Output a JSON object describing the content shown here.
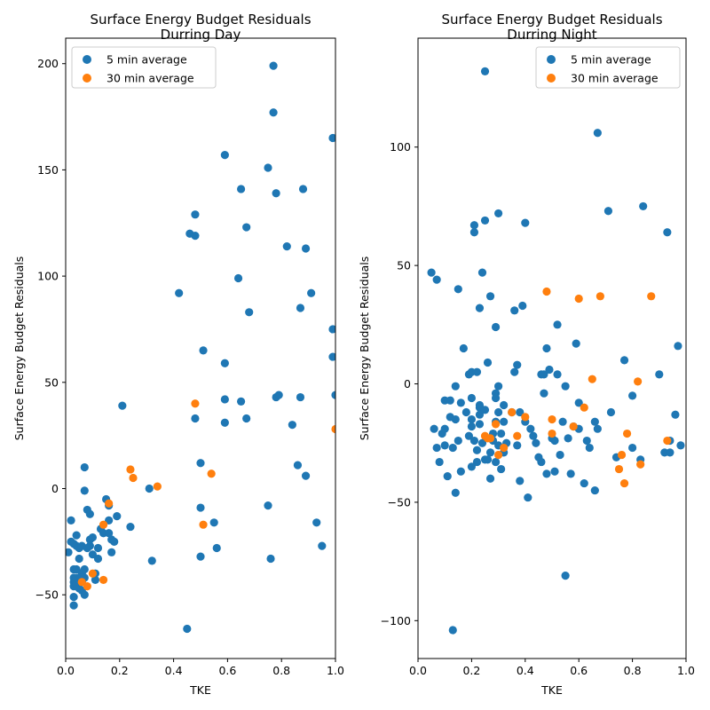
{
  "chart_data": [
    {
      "type": "scatter",
      "title": "Surface Energy Budget Residuals\nDurring Day",
      "xlabel": "TKE",
      "ylabel": "Surface Energy Budget Residuals",
      "xlim": [
        0.0,
        1.0
      ],
      "ylim": [
        -80,
        212
      ],
      "xticks": [
        0.0,
        0.2,
        0.4,
        0.6,
        0.8,
        1.0
      ],
      "xtick_labels": [
        "0.0",
        "0.2",
        "0.4",
        "0.6",
        "0.8",
        "1.0"
      ],
      "yticks": [
        -50,
        0,
        50,
        100,
        150,
        200
      ],
      "ytick_labels": [
        "−50",
        "0",
        "50",
        "100",
        "150",
        "200"
      ],
      "legend_position": "top-left",
      "grid": false,
      "series": [
        {
          "name": "5 min average",
          "color": "#1f77b4",
          "points": [
            [
              0.01,
              -30
            ],
            [
              0.02,
              -25
            ],
            [
              0.02,
              -15
            ],
            [
              0.03,
              -26
            ],
            [
              0.03,
              -38
            ],
            [
              0.03,
              -42
            ],
            [
              0.03,
              -44
            ],
            [
              0.03,
              -46
            ],
            [
              0.03,
              -51
            ],
            [
              0.03,
              -55
            ],
            [
              0.04,
              -22
            ],
            [
              0.04,
              -27
            ],
            [
              0.04,
              -38
            ],
            [
              0.04,
              -42
            ],
            [
              0.04,
              -45
            ],
            [
              0.05,
              -28
            ],
            [
              0.05,
              -33
            ],
            [
              0.05,
              -43
            ],
            [
              0.05,
              -47
            ],
            [
              0.06,
              -27
            ],
            [
              0.06,
              -40
            ],
            [
              0.06,
              -44
            ],
            [
              0.06,
              -48
            ],
            [
              0.07,
              -50
            ],
            [
              0.07,
              10
            ],
            [
              0.07,
              -1
            ],
            [
              0.07,
              -38
            ],
            [
              0.07,
              -42
            ],
            [
              0.08,
              -28
            ],
            [
              0.08,
              -10
            ],
            [
              0.09,
              -12
            ],
            [
              0.09,
              -24
            ],
            [
              0.09,
              -27
            ],
            [
              0.1,
              -23
            ],
            [
              0.1,
              -31
            ],
            [
              0.11,
              -40
            ],
            [
              0.11,
              -43
            ],
            [
              0.12,
              -28
            ],
            [
              0.12,
              -33
            ],
            [
              0.13,
              -19
            ],
            [
              0.14,
              -21
            ],
            [
              0.15,
              -5
            ],
            [
              0.16,
              -8
            ],
            [
              0.16,
              -15
            ],
            [
              0.16,
              -21
            ],
            [
              0.17,
              -24
            ],
            [
              0.17,
              -30
            ],
            [
              0.18,
              -25
            ],
            [
              0.19,
              -13
            ],
            [
              0.21,
              39
            ],
            [
              0.24,
              -18
            ],
            [
              0.31,
              0
            ],
            [
              0.32,
              -34
            ],
            [
              0.42,
              92
            ],
            [
              0.45,
              -66
            ],
            [
              0.46,
              120
            ],
            [
              0.48,
              129
            ],
            [
              0.48,
              119
            ],
            [
              0.48,
              33
            ],
            [
              0.5,
              12
            ],
            [
              0.5,
              -9
            ],
            [
              0.5,
              -32
            ],
            [
              0.51,
              65
            ],
            [
              0.55,
              -16
            ],
            [
              0.56,
              -28
            ],
            [
              0.59,
              157
            ],
            [
              0.59,
              59
            ],
            [
              0.59,
              42
            ],
            [
              0.59,
              31
            ],
            [
              0.64,
              99
            ],
            [
              0.65,
              141
            ],
            [
              0.65,
              41
            ],
            [
              0.67,
              123
            ],
            [
              0.67,
              33
            ],
            [
              0.68,
              83
            ],
            [
              0.75,
              151
            ],
            [
              0.75,
              -8
            ],
            [
              0.76,
              -33
            ],
            [
              0.77,
              199
            ],
            [
              0.77,
              177
            ],
            [
              0.78,
              139
            ],
            [
              0.78,
              43
            ],
            [
              0.79,
              44
            ],
            [
              0.82,
              114
            ],
            [
              0.84,
              30
            ],
            [
              0.86,
              11
            ],
            [
              0.87,
              85
            ],
            [
              0.87,
              43
            ],
            [
              0.88,
              141
            ],
            [
              0.89,
              113
            ],
            [
              0.89,
              6
            ],
            [
              0.91,
              92
            ],
            [
              0.93,
              -16
            ],
            [
              0.95,
              -27
            ],
            [
              0.99,
              165
            ],
            [
              0.99,
              75
            ],
            [
              0.99,
              62
            ],
            [
              1.0,
              44
            ]
          ]
        },
        {
          "name": "30 min average",
          "color": "#ff7f0e",
          "points": [
            [
              0.06,
              -44
            ],
            [
              0.08,
              -46
            ],
            [
              0.1,
              -40
            ],
            [
              0.14,
              -17
            ],
            [
              0.14,
              -43
            ],
            [
              0.16,
              -7
            ],
            [
              0.24,
              9
            ],
            [
              0.25,
              5
            ],
            [
              0.34,
              1
            ],
            [
              0.48,
              40
            ],
            [
              0.51,
              -17
            ],
            [
              0.54,
              7
            ],
            [
              1.0,
              28
            ]
          ]
        }
      ]
    },
    {
      "type": "scatter",
      "title": "Surface Energy Budget Residuals\nDurring Night",
      "xlabel": "TKE",
      "ylabel": "Surface Energy Budget Residuals",
      "xlim": [
        0.0,
        1.0
      ],
      "ylim": [
        -116,
        146
      ],
      "xticks": [
        0.0,
        0.2,
        0.4,
        0.6,
        0.8,
        1.0
      ],
      "xtick_labels": [
        "0.0",
        "0.2",
        "0.4",
        "0.6",
        "0.8",
        "1.0"
      ],
      "yticks": [
        -100,
        -50,
        0,
        50,
        100
      ],
      "ytick_labels": [
        "−100",
        "−50",
        "0",
        "50",
        "100"
      ],
      "legend_position": "top-right",
      "grid": false,
      "series": [
        {
          "name": "5 min average",
          "color": "#1f77b4",
          "points": [
            [
              0.05,
              47
            ],
            [
              0.06,
              -19
            ],
            [
              0.07,
              44
            ],
            [
              0.07,
              -27
            ],
            [
              0.08,
              -33
            ],
            [
              0.09,
              -21
            ],
            [
              0.1,
              -7
            ],
            [
              0.1,
              -19
            ],
            [
              0.1,
              -26
            ],
            [
              0.11,
              -39
            ],
            [
              0.12,
              -14
            ],
            [
              0.12,
              -7
            ],
            [
              0.13,
              -27
            ],
            [
              0.13,
              -104
            ],
            [
              0.14,
              -1
            ],
            [
              0.14,
              -15
            ],
            [
              0.14,
              -46
            ],
            [
              0.15,
              40
            ],
            [
              0.15,
              -24
            ],
            [
              0.16,
              -37
            ],
            [
              0.16,
              -8
            ],
            [
              0.17,
              15
            ],
            [
              0.18,
              -12
            ],
            [
              0.19,
              -22
            ],
            [
              0.19,
              4
            ],
            [
              0.2,
              5
            ],
            [
              0.2,
              -6
            ],
            [
              0.2,
              -15
            ],
            [
              0.2,
              -18
            ],
            [
              0.2,
              -35
            ],
            [
              0.21,
              67
            ],
            [
              0.21,
              64
            ],
            [
              0.21,
              -24
            ],
            [
              0.22,
              -28
            ],
            [
              0.22,
              -33
            ],
            [
              0.22,
              5
            ],
            [
              0.23,
              32
            ],
            [
              0.23,
              -9
            ],
            [
              0.23,
              -10
            ],
            [
              0.23,
              -13
            ],
            [
              0.23,
              -17
            ],
            [
              0.24,
              47
            ],
            [
              0.24,
              -25
            ],
            [
              0.25,
              -11
            ],
            [
              0.25,
              -32
            ],
            [
              0.25,
              69
            ],
            [
              0.25,
              132
            ],
            [
              0.26,
              9
            ],
            [
              0.26,
              -32
            ],
            [
              0.27,
              37
            ],
            [
              0.27,
              -29
            ],
            [
              0.27,
              -40
            ],
            [
              0.28,
              -21
            ],
            [
              0.28,
              -24
            ],
            [
              0.29,
              24
            ],
            [
              0.29,
              -4
            ],
            [
              0.29,
              -6
            ],
            [
              0.29,
              -16
            ],
            [
              0.29,
              -33
            ],
            [
              0.3,
              -1
            ],
            [
              0.3,
              -12
            ],
            [
              0.3,
              72
            ],
            [
              0.3,
              -26
            ],
            [
              0.31,
              -21
            ],
            [
              0.31,
              -36
            ],
            [
              0.32,
              -9
            ],
            [
              0.32,
              -16
            ],
            [
              0.32,
              -29
            ],
            [
              0.33,
              -25
            ],
            [
              0.35,
              -12
            ],
            [
              0.36,
              5
            ],
            [
              0.36,
              31
            ],
            [
              0.37,
              8
            ],
            [
              0.37,
              -26
            ],
            [
              0.38,
              -41
            ],
            [
              0.38,
              -12
            ],
            [
              0.39,
              33
            ],
            [
              0.4,
              68
            ],
            [
              0.4,
              -16
            ],
            [
              0.41,
              -48
            ],
            [
              0.42,
              -19
            ],
            [
              0.43,
              -22
            ],
            [
              0.44,
              -25
            ],
            [
              0.45,
              -31
            ],
            [
              0.46,
              -33
            ],
            [
              0.46,
              4
            ],
            [
              0.47,
              4
            ],
            [
              0.47,
              -4
            ],
            [
              0.48,
              15
            ],
            [
              0.48,
              -38
            ],
            [
              0.49,
              6
            ],
            [
              0.5,
              -23
            ],
            [
              0.51,
              -37
            ],
            [
              0.51,
              -24
            ],
            [
              0.52,
              4
            ],
            [
              0.52,
              25
            ],
            [
              0.53,
              -30
            ],
            [
              0.54,
              -16
            ],
            [
              0.55,
              -81
            ],
            [
              0.55,
              -1
            ],
            [
              0.56,
              -23
            ],
            [
              0.57,
              -38
            ],
            [
              0.58,
              -18
            ],
            [
              0.59,
              17
            ],
            [
              0.6,
              -8
            ],
            [
              0.6,
              -19
            ],
            [
              0.62,
              -42
            ],
            [
              0.63,
              -24
            ],
            [
              0.64,
              -27
            ],
            [
              0.66,
              -45
            ],
            [
              0.66,
              -16
            ],
            [
              0.67,
              -19
            ],
            [
              0.67,
              106
            ],
            [
              0.71,
              73
            ],
            [
              0.72,
              -12
            ],
            [
              0.74,
              -31
            ],
            [
              0.77,
              10
            ],
            [
              0.8,
              -5
            ],
            [
              0.8,
              -27
            ],
            [
              0.83,
              -32
            ],
            [
              0.84,
              75
            ],
            [
              0.9,
              4
            ],
            [
              0.92,
              -29
            ],
            [
              0.93,
              64
            ],
            [
              0.94,
              -29
            ],
            [
              0.94,
              -24
            ],
            [
              0.96,
              -13
            ],
            [
              0.97,
              16
            ],
            [
              0.98,
              -26
            ]
          ]
        },
        {
          "name": "30 min average",
          "color": "#ff7f0e",
          "points": [
            [
              0.25,
              -22
            ],
            [
              0.26,
              -23
            ],
            [
              0.27,
              -23
            ],
            [
              0.29,
              -17
            ],
            [
              0.3,
              -30
            ],
            [
              0.32,
              -27
            ],
            [
              0.35,
              -12
            ],
            [
              0.37,
              -22
            ],
            [
              0.4,
              -14
            ],
            [
              0.48,
              39
            ],
            [
              0.5,
              -15
            ],
            [
              0.5,
              -21
            ],
            [
              0.58,
              -18
            ],
            [
              0.6,
              36
            ],
            [
              0.62,
              -10
            ],
            [
              0.65,
              2
            ],
            [
              0.68,
              37
            ],
            [
              0.75,
              -36
            ],
            [
              0.76,
              -30
            ],
            [
              0.77,
              -42
            ],
            [
              0.78,
              -21
            ],
            [
              0.82,
              1
            ],
            [
              0.83,
              -34
            ],
            [
              0.87,
              37
            ],
            [
              0.93,
              -24
            ]
          ]
        }
      ]
    }
  ]
}
